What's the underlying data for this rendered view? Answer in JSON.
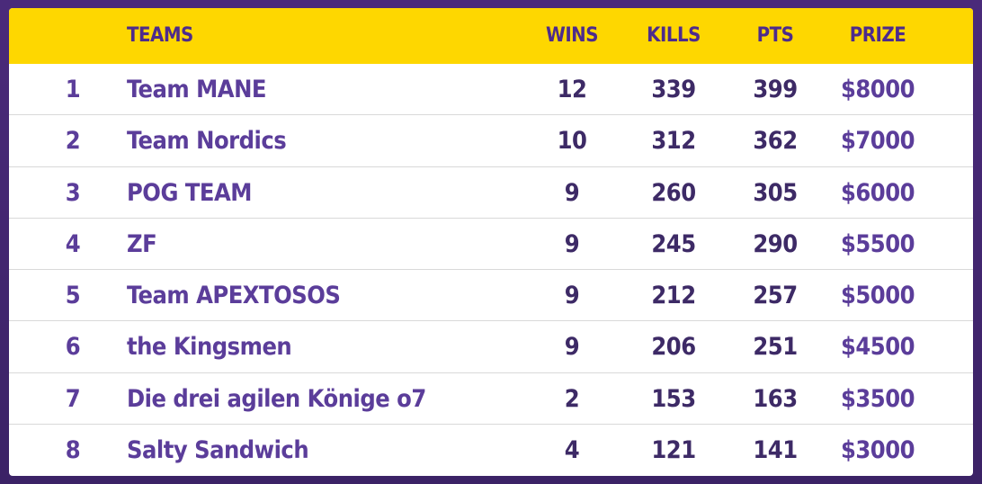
{
  "headers": {
    "teams": "TEAMS",
    "wins": "WINS",
    "kills": "KILLS",
    "pts": "PTS",
    "prize": "PRIZE"
  },
  "rows": [
    {
      "rank": "1",
      "team": "Team MANE",
      "wins": "12",
      "kills": "339",
      "pts": "399",
      "prize": "$8000"
    },
    {
      "rank": "2",
      "team": "Team Nordics",
      "wins": "10",
      "kills": "312",
      "pts": "362",
      "prize": "$7000"
    },
    {
      "rank": "3",
      "team": "POG TEAM",
      "wins": "9",
      "kills": "260",
      "pts": "305",
      "prize": "$6000"
    },
    {
      "rank": "4",
      "team": "ZF",
      "wins": "9",
      "kills": "245",
      "pts": "290",
      "prize": "$5500"
    },
    {
      "rank": "5",
      "team": "Team APEXTOSOS",
      "wins": "9",
      "kills": "212",
      "pts": "257",
      "prize": "$5000"
    },
    {
      "rank": "6",
      "team": "the Kingsmen",
      "wins": "9",
      "kills": "206",
      "pts": "251",
      "prize": "$4500"
    },
    {
      "rank": "7",
      "team": "Die drei agilen Könige o7",
      "wins": "2",
      "kills": "153",
      "pts": "163",
      "prize": "$3500"
    },
    {
      "rank": "8",
      "team": "Salty Sandwich",
      "wins": "4",
      "kills": "121",
      "pts": "141",
      "prize": "$3000"
    }
  ],
  "colors": {
    "background": "#4a2a7a",
    "header": "#fed700",
    "accent": "#5b3d9a",
    "numbers": "#3d2a66"
  }
}
